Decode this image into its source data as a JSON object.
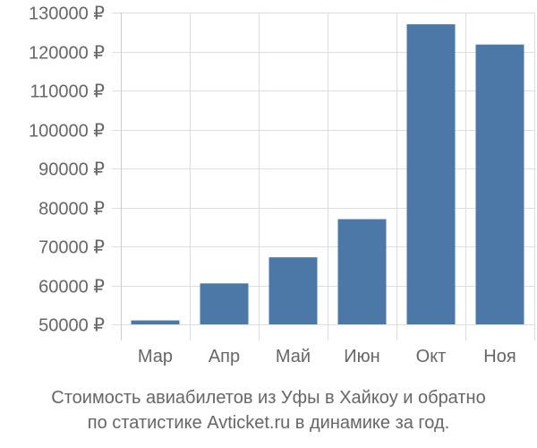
{
  "chart_data": {
    "type": "bar",
    "categories": [
      "Мар",
      "Апр",
      "Май",
      "Июн",
      "Окт",
      "Ноя"
    ],
    "values": [
      51000,
      60500,
      67200,
      77000,
      127000,
      121800
    ],
    "yticks": [
      "50000 ₽",
      "60000 ₽",
      "70000 ₽",
      "80000 ₽",
      "90000 ₽",
      "100000 ₽",
      "110000 ₽",
      "120000 ₽",
      "130000 ₽"
    ],
    "ylim": [
      50000,
      130000
    ],
    "grid": true,
    "bar_color": "#4c78a8",
    "title_lines": [
      "Стоимость авиабилетов из Уфы в Хайкоу и обратно",
      "по статистике Avticket.ru в динамике за год."
    ]
  }
}
